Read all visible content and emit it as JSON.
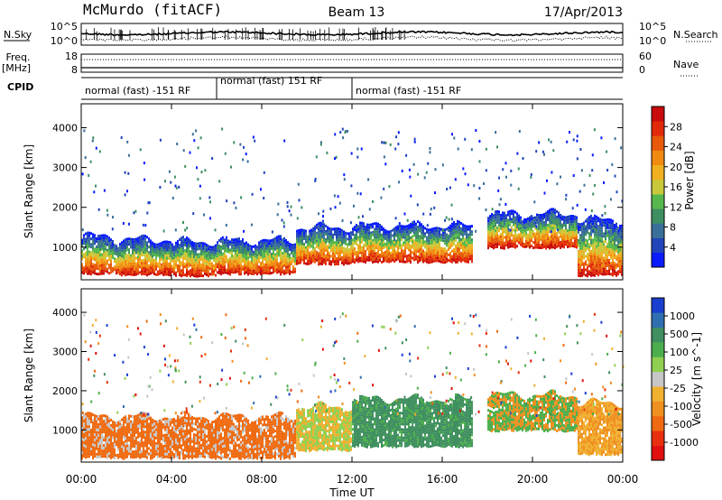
{
  "header": {
    "station": "McMurdo (fitACF)",
    "beam": "Beam 13",
    "date": "17/Apr/2013"
  },
  "summary": {
    "nsky_label": "N.Sky",
    "nsky_ticks": [
      "10^5",
      "10^0"
    ],
    "nsearch_label": "N.Search",
    "nsearch_ticks": [
      "10^5",
      "10^0"
    ],
    "freq_label": "Freq.",
    "freq_unit": "[MHz]",
    "freq_ticks": [
      "18",
      "8"
    ],
    "nave_label": "Nave",
    "nave_ticks": [
      "60",
      "0"
    ],
    "cpid_label": "CPID",
    "cpid_segments": [
      {
        "label": "normal (fast) -151 RF",
        "start_hour": 0,
        "end_hour": 6
      },
      {
        "label": "normal (fast) 151 RF",
        "start_hour": 6,
        "end_hour": 12
      },
      {
        "label": "normal (fast) -151 RF",
        "start_hour": 12,
        "end_hour": 24
      }
    ]
  },
  "chart_data": [
    {
      "type": "heatmap",
      "title": "",
      "xlabel": "Time UT",
      "ylabel": "Slant Range [km]",
      "x_ticks": [
        "00:00",
        "04:00",
        "08:00",
        "12:00",
        "16:00",
        "20:00",
        "00:00"
      ],
      "xlim_hours": [
        0,
        24
      ],
      "y_ticks": [
        1000,
        2000,
        3000,
        4000
      ],
      "ylim": [
        180,
        4600
      ],
      "colorbar": {
        "label": "Power [dB]",
        "ticks": [
          "4",
          "8",
          "12",
          "16",
          "20",
          "24",
          "28"
        ],
        "colors": [
          "#0a1cff",
          "#2244bb",
          "#3a6f9a",
          "#3d8f62",
          "#56b84c",
          "#c9c83a",
          "#f0b020",
          "#f08a10",
          "#e85a0a",
          "#e12a0a",
          "#c80c0c"
        ]
      },
      "bands": [
        {
          "start": 0.0,
          "end": 1.5,
          "lo": 350,
          "hi": 1280
        },
        {
          "start": 1.5,
          "end": 4.0,
          "lo": 330,
          "hi": 1200
        },
        {
          "start": 4.0,
          "end": 6.0,
          "lo": 300,
          "hi": 1150
        },
        {
          "start": 6.0,
          "end": 9.5,
          "lo": 350,
          "hi": 1180
        },
        {
          "start": 9.5,
          "end": 12.0,
          "lo": 600,
          "hi": 1500
        },
        {
          "start": 12.0,
          "end": 17.3,
          "lo": 650,
          "hi": 1550
        },
        {
          "start": 18.0,
          "end": 22.0,
          "lo": 1000,
          "hi": 1850
        },
        {
          "start": 22.0,
          "end": 24.0,
          "lo": 300,
          "hi": 1700
        }
      ]
    },
    {
      "type": "heatmap",
      "title": "",
      "xlabel": "Time UT",
      "ylabel": "Slant Range [km]",
      "x_ticks": [
        "00:00",
        "04:00",
        "08:00",
        "12:00",
        "16:00",
        "20:00",
        "00:00"
      ],
      "xlim_hours": [
        0,
        24
      ],
      "y_ticks": [
        1000,
        2000,
        3000,
        4000
      ],
      "ylim": [
        180,
        4600
      ],
      "colorbar": {
        "label": "Velocity [m s^-1]",
        "ticks": [
          "1000",
          "500",
          "100",
          "25",
          "-25",
          "-100",
          "-500",
          "-1000"
        ],
        "colors": [
          "#1a3fd0",
          "#2f6fb0",
          "#3f8f60",
          "#4cae4c",
          "#8fd050",
          "#c6c6c6",
          "#f0b030",
          "#f09020",
          "#ef6a10",
          "#e83010",
          "#e01010"
        ]
      },
      "bands": [
        {
          "start": 0.0,
          "end": 9.5,
          "lo": 300,
          "hi": 1350
        },
        {
          "start": 9.5,
          "end": 12.0,
          "lo": 500,
          "hi": 1600
        },
        {
          "start": 12.0,
          "end": 17.3,
          "lo": 600,
          "hi": 1800
        },
        {
          "start": 18.0,
          "end": 22.0,
          "lo": 1000,
          "hi": 1900
        },
        {
          "start": 22.0,
          "end": 24.0,
          "lo": 400,
          "hi": 1700
        }
      ]
    }
  ]
}
